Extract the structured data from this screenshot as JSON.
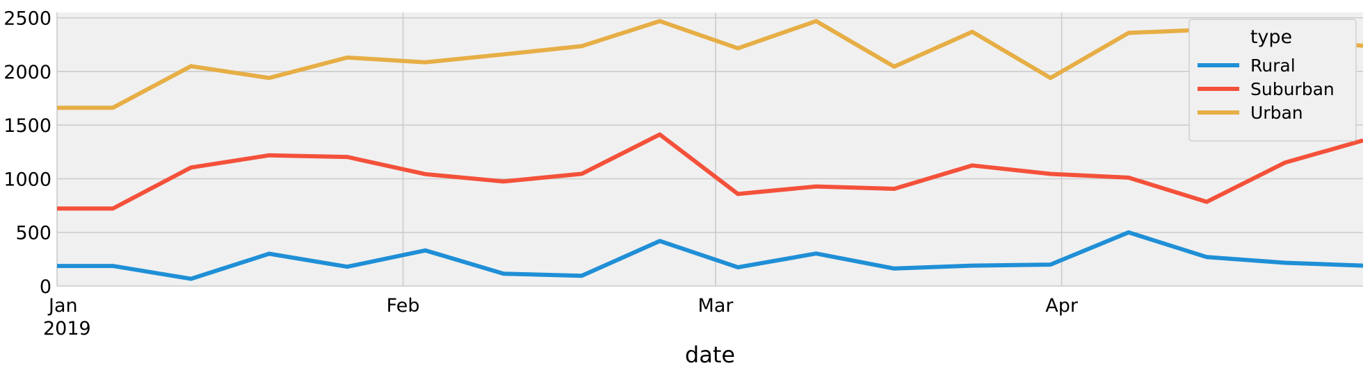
{
  "chart_data": {
    "type": "line",
    "title": "",
    "xlabel": "date",
    "ylabel": "",
    "grid": true,
    "legend": {
      "title": "type",
      "placement": "top-right"
    },
    "ylim": [
      0,
      2550
    ],
    "y_ticks": [
      0,
      500,
      1000,
      1500,
      2000,
      2500
    ],
    "y_tick_labels": [
      "0",
      "500",
      "1000",
      "1500",
      "2000",
      "2500"
    ],
    "x_ticks": [
      {
        "date": "2019-01-01",
        "label": "Jan",
        "sublabel": "2019"
      },
      {
        "date": "2019-02-01",
        "label": "Feb",
        "sublabel": ""
      },
      {
        "date": "2019-03-01",
        "label": "Mar",
        "sublabel": ""
      },
      {
        "date": "2019-04-01",
        "label": "Apr",
        "sublabel": ""
      }
    ],
    "xlim": [
      "2019-01-01",
      "2019-04-28"
    ],
    "x": [
      "2019-01-06",
      "2019-01-13",
      "2019-01-20",
      "2019-01-27",
      "2019-02-03",
      "2019-02-10",
      "2019-02-17",
      "2019-02-24",
      "2019-03-03",
      "2019-03-10",
      "2019-03-17",
      "2019-03-24",
      "2019-03-31",
      "2019-04-07",
      "2019-04-14",
      "2019-04-21",
      "2019-04-28"
    ],
    "series": [
      {
        "name": "Rural",
        "color": "#1f8fd6",
        "values": [
          187,
          67,
          301,
          180,
          332,
          115,
          95,
          420,
          175,
          303,
          163,
          190,
          200,
          500,
          270,
          217,
          190
        ]
      },
      {
        "name": "Suburban",
        "color": "#f4513a",
        "values": [
          722,
          1105,
          1219,
          1203,
          1043,
          975,
          1046,
          1413,
          858,
          928,
          906,
          1124,
          1045,
          1010,
          785,
          1150,
          1357
        ]
      },
      {
        "name": "Urban",
        "color": "#e6ae45",
        "values": [
          1662,
          2050,
          1940,
          2130,
          2086,
          2160,
          2236,
          2470,
          2216,
          2470,
          2045,
          2370,
          1940,
          2360,
          2390,
          2300,
          2240
        ]
      }
    ]
  }
}
